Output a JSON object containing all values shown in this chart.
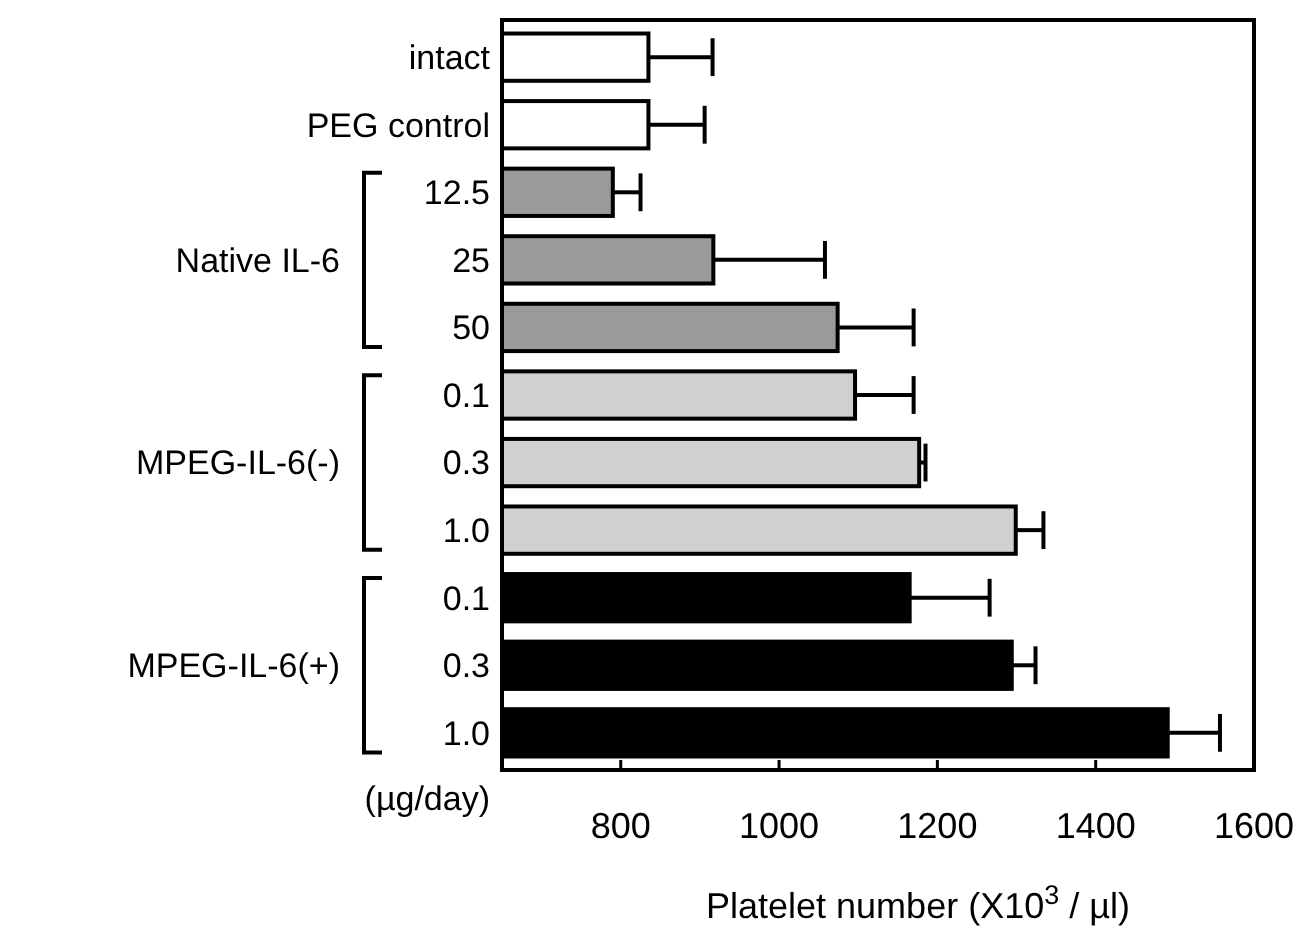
{
  "chart_data": {
    "type": "bar",
    "orientation": "horizontal",
    "xlabel": "Platelet number (X10$^{3}$ / µl)",
    "categories": [
      "intact",
      "PEG control",
      "12.5",
      "25",
      "50",
      "0.1",
      "0.3",
      "1.0",
      "0.1",
      "0.3",
      "1.0"
    ],
    "values": [
      835,
      835,
      790,
      917,
      1074,
      1096,
      1177,
      1299,
      1165,
      1294,
      1491
    ],
    "errors": [
      [
        835,
        916
      ],
      [
        835,
        906
      ],
      [
        790,
        825
      ],
      [
        917,
        1058
      ],
      [
        1074,
        1170
      ],
      [
        1096,
        1170
      ],
      [
        1177,
        1185
      ],
      [
        1299,
        1334
      ],
      [
        1165,
        1266
      ],
      [
        1294,
        1324
      ],
      [
        1491,
        1557
      ]
    ],
    "colors": [
      "#ffffff",
      "#ffffff",
      "#9a9a9a",
      "#9a9a9a",
      "#9a9a9a",
      "#d0d0d0",
      "#d0d0d0",
      "#d0d0d0",
      "#000000",
      "#000000",
      "#000000"
    ],
    "xlim": [
      650,
      1600
    ],
    "xticks": [
      800,
      1000,
      1200,
      1400,
      1600
    ],
    "annotations": [
      "Native IL-6",
      "MPEG-IL-6(-)",
      "MPEG-IL-6(+)",
      "(µg/day)"
    ],
    "grid": false
  }
}
